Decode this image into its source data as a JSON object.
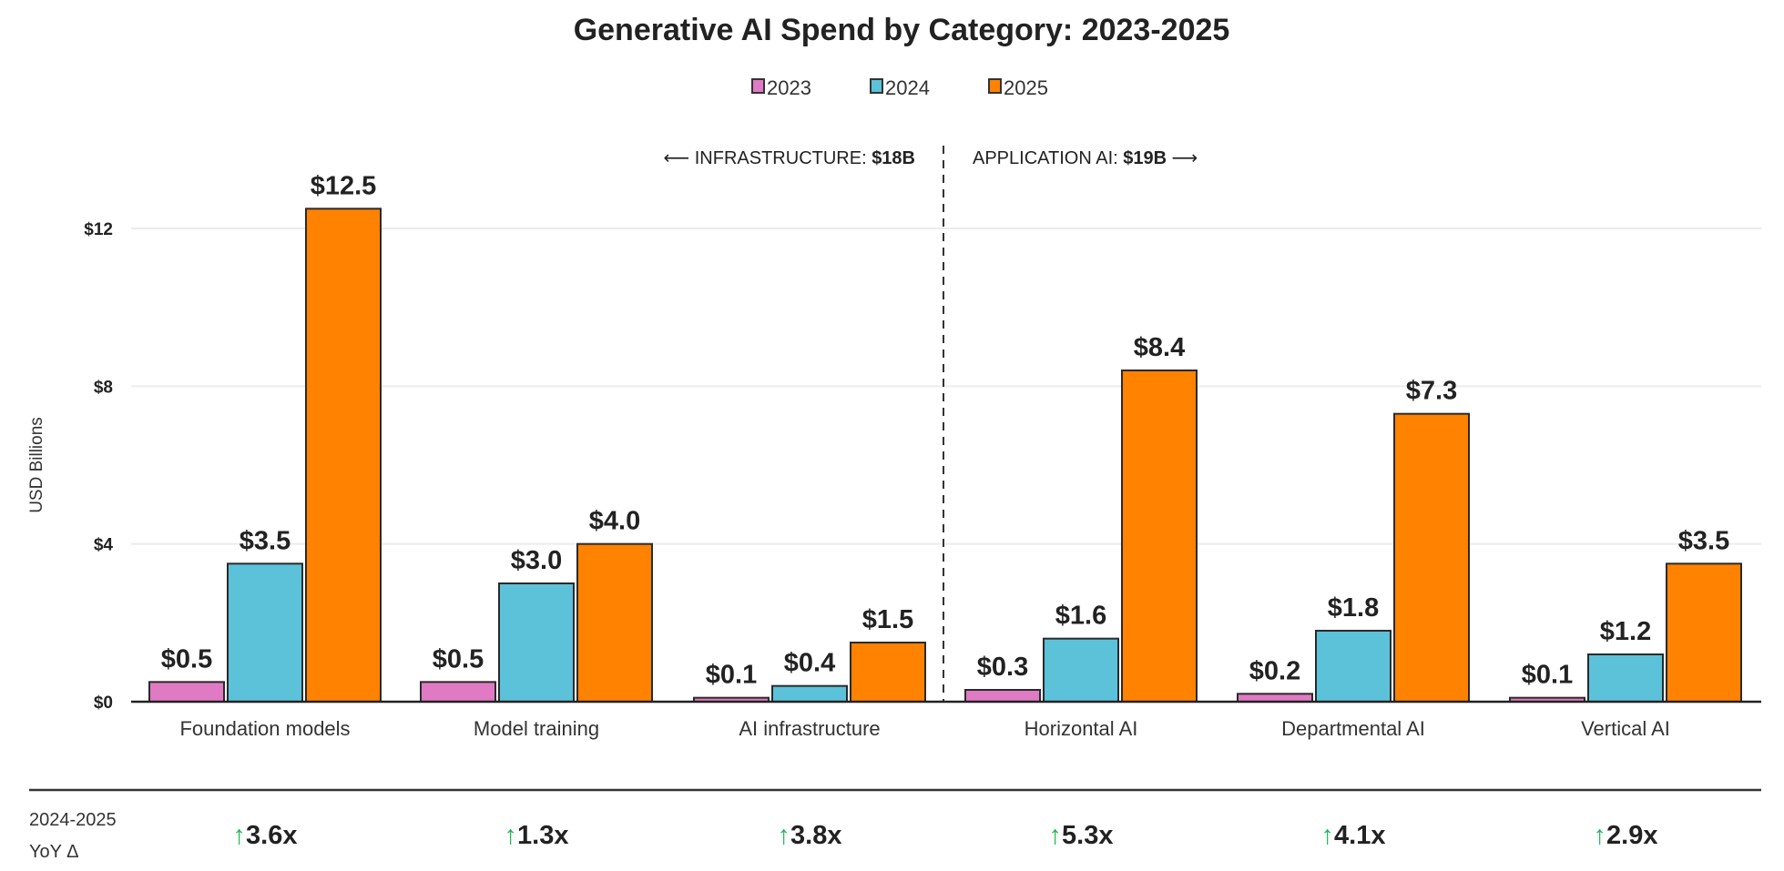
{
  "chart_data": {
    "type": "bar",
    "title": "Generative AI Spend by Category: 2023-2025",
    "ylabel": "USD Billions",
    "xlabel": "",
    "ylim": [
      0,
      13.5
    ],
    "yticks": [
      0,
      4,
      8,
      12
    ],
    "ytick_labels": [
      "$0",
      "$4",
      "$8",
      "$12"
    ],
    "grid": true,
    "legend_placement": "top-center",
    "categories": [
      "Foundation models",
      "Model training",
      "AI infrastructure",
      "Horizontal AI",
      "Departmental AI",
      "Vertical AI"
    ],
    "series": [
      {
        "name": "2023",
        "color": "#E07AC4",
        "values": [
          0.5,
          0.5,
          0.1,
          0.3,
          0.2,
          0.1
        ],
        "labels": [
          "$0.5",
          "$0.5",
          "$0.1",
          "$0.3",
          "$0.2",
          "$0.1"
        ]
      },
      {
        "name": "2024",
        "color": "#5BC2DA",
        "values": [
          3.5,
          3.0,
          0.4,
          1.6,
          1.8,
          1.2
        ],
        "labels": [
          "$3.5",
          "$3.0",
          "$0.4",
          "$1.6",
          "$1.8",
          "$1.2"
        ]
      },
      {
        "name": "2025",
        "color": "#FF8200",
        "values": [
          12.5,
          4.0,
          1.5,
          8.4,
          7.3,
          3.5
        ],
        "labels": [
          "$12.5",
          "$4.0",
          "$1.5",
          "$8.4",
          "$7.3",
          "$3.5"
        ]
      }
    ],
    "annotations": {
      "left_label": "⟵ INFRASTRUCTURE: ",
      "left_value": "$18B",
      "right_label": "APPLICATION AI: ",
      "right_value": "$19B",
      "right_arrow": " ⟶"
    },
    "yoy": {
      "label_line1": "2024-2025",
      "label_line2": "YoY Δ",
      "arrow": "↑",
      "arrow_color": "#1DB954",
      "values": [
        "3.6x",
        "1.3x",
        "3.8x",
        "5.3x",
        "4.1x",
        "2.9x"
      ]
    }
  }
}
